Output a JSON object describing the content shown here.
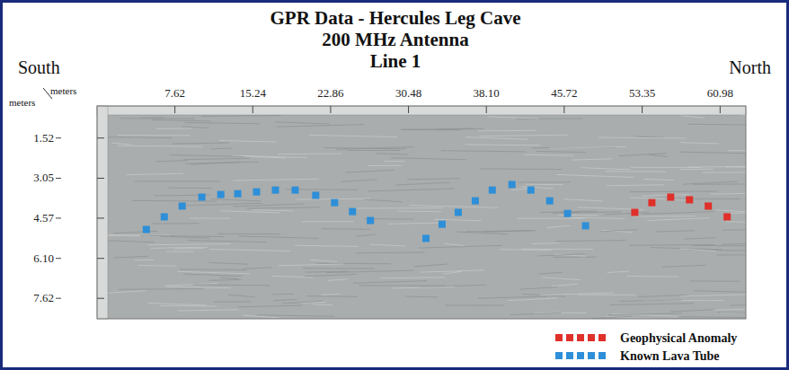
{
  "chart_data": {
    "type": "scatter",
    "title": "GPR Data - Hercules Leg Cave",
    "subtitle": "200 MHz Antenna",
    "annotations": {
      "line": "Line 1",
      "left_end": "South",
      "right_end": "North"
    },
    "x_label": "meters",
    "y_label": "meters",
    "xlim": [
      0,
      63.5
    ],
    "ylim": [
      0.3,
      8.4
    ],
    "xticks": [
      7.62,
      15.24,
      22.86,
      30.48,
      {
        "value": 38.1,
        "label": "38.10"
      },
      45.72,
      53.35,
      60.98
    ],
    "yticks": [
      1.52,
      3.05,
      4.57,
      {
        "value": 6.1,
        "label": "6.10"
      },
      7.62
    ],
    "legend": "bottom-right",
    "grid": false,
    "series": [
      {
        "name": "Geophysical Anomaly",
        "color": "#e0302a",
        "marker": "square",
        "x": [
          52.63,
          54.3,
          56.14,
          57.98,
          59.82,
          61.67
        ],
        "values": [
          4.35,
          3.98,
          3.77,
          3.87,
          4.11,
          4.52
        ]
      },
      {
        "name": "Known Lava Tube",
        "color": "#2e8fd8",
        "marker": "square",
        "x": [
          4.82,
          6.58,
          8.33,
          10.26,
          12.11,
          13.77,
          15.61,
          17.46,
          19.39,
          21.4,
          23.25,
          25.0,
          26.75,
          32.19,
          33.77,
          35.35,
          37.02,
          38.68,
          40.61,
          42.46,
          44.3,
          46.05,
          47.81
        ],
        "values": [
          5.0,
          4.52,
          4.11,
          3.77,
          3.67,
          3.64,
          3.57,
          3.5,
          3.5,
          3.7,
          3.98,
          4.32,
          4.66,
          5.34,
          4.8,
          4.35,
          3.91,
          3.5,
          3.29,
          3.5,
          3.91,
          4.39,
          4.86
        ]
      }
    ]
  }
}
